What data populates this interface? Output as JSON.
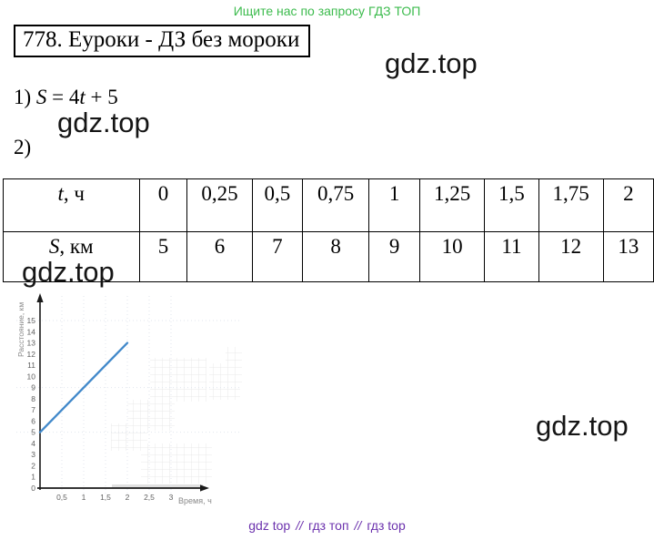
{
  "promo": {
    "text": "Ищите нас по запросу ГДЗ ТОП",
    "color": "#3cbb4d"
  },
  "title": {
    "text": "778. Еуроки - ДЗ без мороки"
  },
  "watermark": {
    "text": "gdz.top"
  },
  "steps": {
    "step1_label": "1) ",
    "formula": {
      "p1": "S",
      "p2": " = 4",
      "p3": "t",
      "p4": " + 5"
    },
    "step2_label": "2)"
  },
  "table": {
    "header_row": {
      "var": "t",
      "unit": ", ч",
      "values": [
        "0",
        "0,25",
        "0,5",
        "0,75",
        "1",
        "1,25",
        "1,5",
        "1,75",
        "2"
      ]
    },
    "data_row": {
      "var": "S",
      "unit": ", км",
      "values": [
        "5",
        "6",
        "7",
        "8",
        "9",
        "10",
        "11",
        "12",
        "13"
      ]
    }
  },
  "chart_data": {
    "type": "line",
    "title": "",
    "xlabel": "Время, ч",
    "ylabel": "Расстояние, км",
    "xlim": [
      0,
      3.4
    ],
    "ylim": [
      0,
      16
    ],
    "x_ticks": [
      0.5,
      1,
      1.5,
      2,
      2.5,
      3
    ],
    "x_tick_labels": [
      "0,5",
      "1",
      "1,5",
      "2",
      "2,5",
      "3"
    ],
    "y_ticks": [
      0,
      1,
      2,
      3,
      4,
      5,
      6,
      7,
      8,
      9,
      10,
      11,
      12,
      13,
      14,
      15
    ],
    "series": [
      {
        "name": "S = 4t + 5",
        "x": [
          0,
          2
        ],
        "y": [
          5,
          13
        ],
        "color": "#4289ca"
      }
    ],
    "faint_hlines": [
      5,
      9,
      15
    ],
    "grid": "faint-dotted",
    "legend": "none",
    "axis_color": "#1a1a1a",
    "tick_color": "#5f5f5f",
    "label_color": "#8a8a8a"
  },
  "footer": {
    "links": [
      "gdz top",
      "гдз топ",
      "гдз top"
    ],
    "separator": "//",
    "color": "#6b31ad"
  }
}
